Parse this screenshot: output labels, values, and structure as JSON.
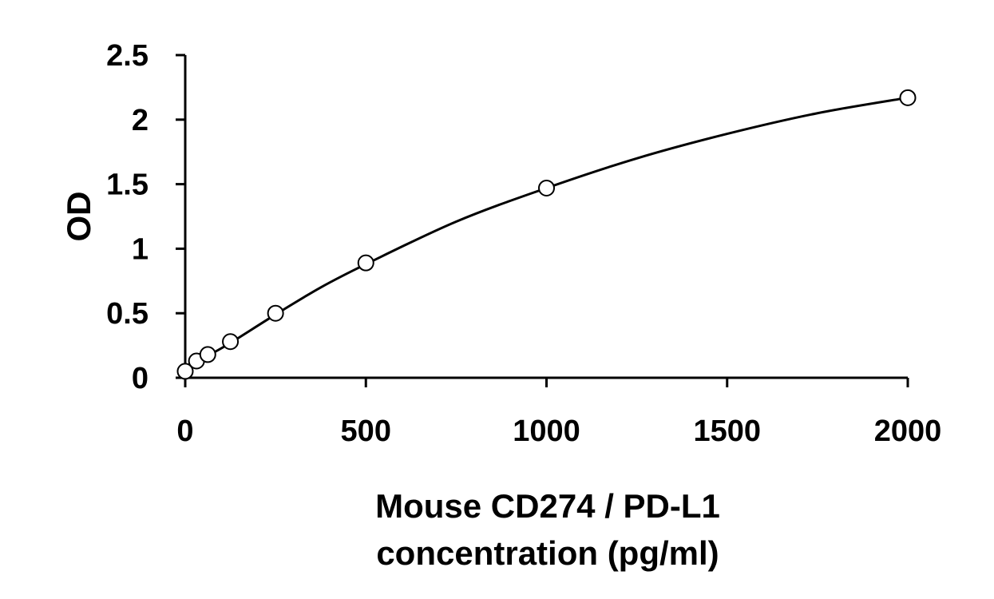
{
  "chart_data": {
    "type": "scatter",
    "title": "",
    "xlabel": "Mouse CD274 / PD-L1 concentration (pg/ml)",
    "xlabel_lines": [
      "Mouse CD274 / PD-L1",
      "concentration (pg/ml)"
    ],
    "ylabel": "OD",
    "xlim": [
      0,
      2000
    ],
    "ylim": [
      0,
      2.5
    ],
    "x_ticks": [
      0,
      500,
      1000,
      1500,
      2000
    ],
    "x_tick_labels": [
      "0",
      "500",
      "1000",
      "1500",
      "2000"
    ],
    "y_ticks": [
      0,
      0.5,
      1,
      1.5,
      2,
      2.5
    ],
    "y_tick_labels": [
      "0",
      "0.5",
      "1",
      "1.5",
      "2",
      "2.5"
    ],
    "grid": false,
    "legend": "none",
    "series": [
      {
        "marker": "open-circle",
        "x": [
          0,
          31.25,
          62.5,
          125,
          250,
          500,
          1000,
          2000
        ],
        "y": [
          0.05,
          0.13,
          0.18,
          0.28,
          0.5,
          0.89,
          1.47,
          2.17
        ]
      }
    ],
    "fit_curve": {
      "style": "smooth-line",
      "x": [
        0,
        31.25,
        62.5,
        125,
        250,
        375,
        500,
        750,
        1000,
        1250,
        1500,
        1750,
        2000
      ],
      "y": [
        0.07,
        0.12,
        0.17,
        0.27,
        0.49,
        0.7,
        0.88,
        1.21,
        1.47,
        1.7,
        1.89,
        2.05,
        2.17
      ]
    }
  }
}
